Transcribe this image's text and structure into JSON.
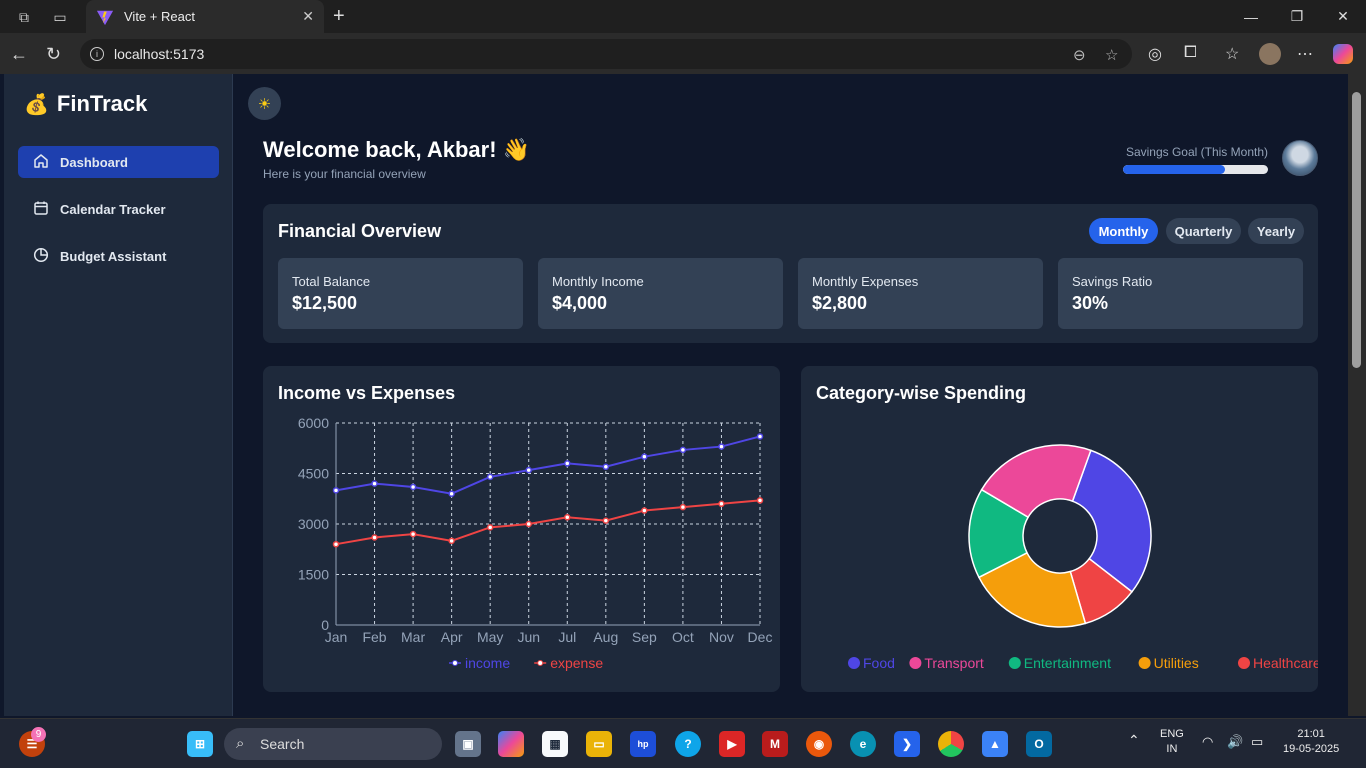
{
  "browser": {
    "tab_title": "Vite + React",
    "url": "localhost:5173"
  },
  "sidebar": {
    "brand": "FinTrack",
    "items": [
      {
        "label": "Dashboard",
        "icon": "home-icon",
        "active": true
      },
      {
        "label": "Calendar Tracker",
        "icon": "calendar-icon",
        "active": false
      },
      {
        "label": "Budget Assistant",
        "icon": "pie-icon",
        "active": false
      }
    ]
  },
  "header": {
    "welcome": "Welcome back, Akbar! 👋",
    "subtitle": "Here is your financial overview",
    "savings_goal_label": "Savings Goal (This Month)",
    "savings_goal_progress": 0.7
  },
  "overview": {
    "title": "Financial Overview",
    "periods": [
      "Monthly",
      "Quarterly",
      "Yearly"
    ],
    "active_period": "Monthly",
    "stats": [
      {
        "label": "Total Balance",
        "value": "$12,500"
      },
      {
        "label": "Monthly Income",
        "value": "$4,000"
      },
      {
        "label": "Monthly Expenses",
        "value": "$2,800"
      },
      {
        "label": "Savings Ratio",
        "value": "30%"
      }
    ]
  },
  "income_chart_title": "Income vs Expenses",
  "spending_chart_title": "Category-wise Spending",
  "chart_data": [
    {
      "type": "line",
      "title": "Income vs Expenses",
      "x": [
        "Jan",
        "Feb",
        "Mar",
        "Apr",
        "May",
        "Jun",
        "Jul",
        "Aug",
        "Sep",
        "Oct",
        "Nov",
        "Dec"
      ],
      "yticks": [
        "6000",
        "4500",
        "3000",
        "1500",
        "0"
      ],
      "ylim": [
        0,
        6000
      ],
      "grid": true,
      "legend_position": "bottom",
      "series": [
        {
          "name": "income",
          "color": "#4f46e5",
          "values": [
            4000,
            4200,
            4100,
            3900,
            4400,
            4600,
            4800,
            4700,
            5000,
            5200,
            5300,
            5600
          ]
        },
        {
          "name": "expense",
          "color": "#ef4444",
          "values": [
            2400,
            2600,
            2700,
            2500,
            2900,
            3000,
            3200,
            3100,
            3400,
            3500,
            3600,
            3700
          ]
        }
      ]
    },
    {
      "type": "pie",
      "title": "Category-wise Spending",
      "donut": true,
      "legend_position": "bottom",
      "slices": [
        {
          "name": "Food",
          "value": 30,
          "color": "#4f46e5"
        },
        {
          "name": "Healthcare",
          "value": 10,
          "color": "#ef4444"
        },
        {
          "name": "Utilities",
          "value": 22,
          "color": "#f59e0b"
        },
        {
          "name": "Entertainment",
          "value": 16,
          "color": "#10b981"
        },
        {
          "name": "Transport",
          "value": 22,
          "color": "#ec4899"
        }
      ]
    }
  ],
  "taskbar": {
    "search_label": "Search",
    "notification_count": "9",
    "lang": "ENG",
    "region": "IN",
    "time": "21:01",
    "date": "19-05-2025"
  }
}
